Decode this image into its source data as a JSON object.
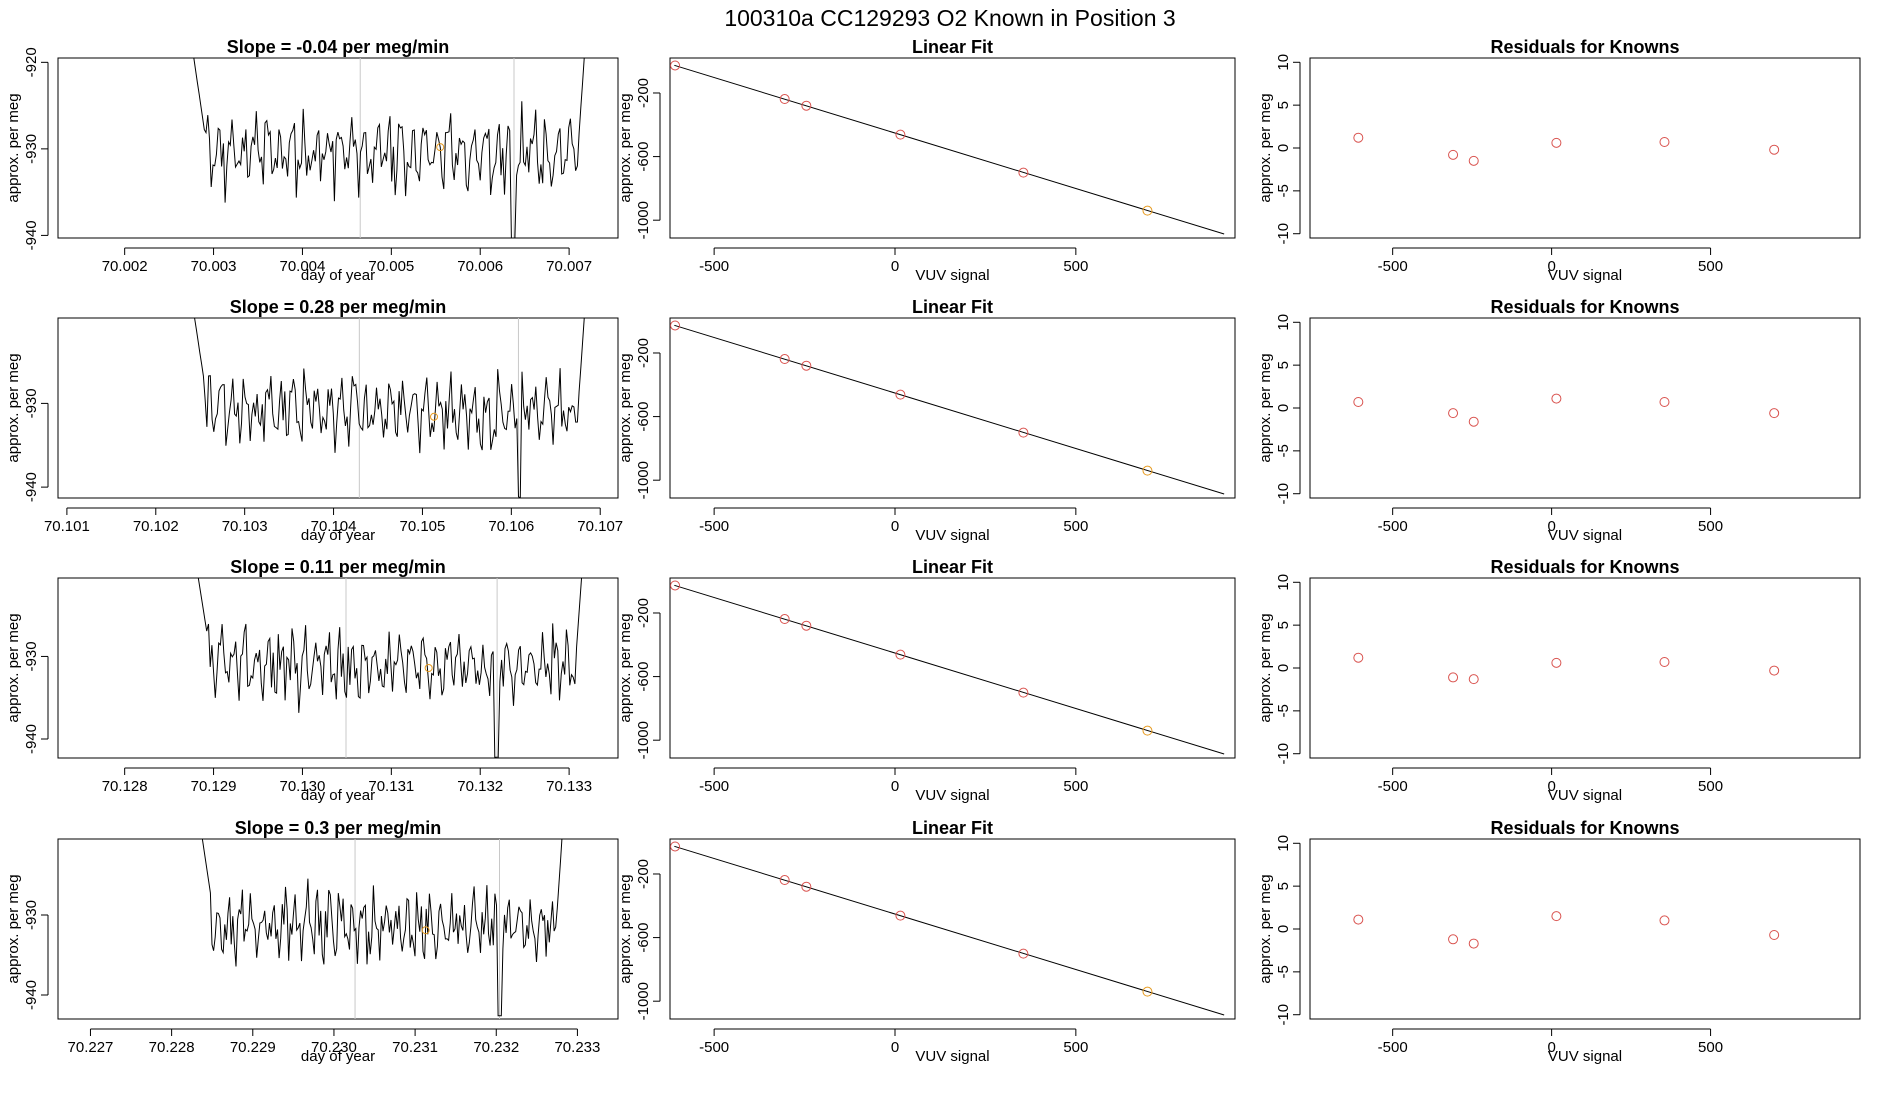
{
  "page_title": "100310a      CC129293   O2 Known in Position  3",
  "colors": {
    "point": "#d9534f",
    "highlight": "#e69a1f",
    "guide": "#c8c8c8",
    "ink": "#000000"
  },
  "rows": [
    {
      "time": {
        "title": "Slope =  -0.04  per meg/min",
        "xlabel": "day of year",
        "ylabel": "approx. per meg",
        "xlim": [
          70.00125,
          70.00755
        ],
        "ylim": [
          -940.3,
          -919.5
        ],
        "xticks": [
          "70.002",
          "70.003",
          "70.004",
          "70.005",
          "70.006",
          "70.007"
        ],
        "yticks": [
          "-920",
          "-930",
          "-940"
        ],
        "vlines": [
          70.00465,
          70.00638
        ],
        "highlight": {
          "x": 70.00555,
          "y": -929.8
        },
        "segment": [
          70.00272,
          70.00721
        ],
        "base": -930.4,
        "seed": 11,
        "dips": [
          {
            "x": 70.00637,
            "y": -940.3
          }
        ]
      },
      "fit": {
        "title": "Linear Fit",
        "xlabel": "VUV signal",
        "ylabel": "approx. per meg",
        "xlim": [
          -622,
          940
        ],
        "ylim": [
          -1112,
          20
        ],
        "xticks": [
          "-500",
          "0",
          "500"
        ],
        "yticks": [
          "-200",
          "-600",
          "-1000"
        ],
        "line": [
          [
            -610,
            -26
          ],
          [
            910,
            -1087
          ]
        ],
        "points": [
          [
            -608,
            -27
          ],
          [
            -305,
            -238
          ],
          [
            -245,
            -280
          ],
          [
            15,
            -462
          ],
          [
            355,
            -701
          ],
          [
            698,
            -940
          ]
        ],
        "highlight_index": 5
      },
      "resid": {
        "title": "Residuals for Knowns",
        "xlabel": "VUV signal",
        "ylabel": "approx. per meg",
        "xlim": [
          -760,
          970
        ],
        "ylim": [
          -10.5,
          10.5
        ],
        "xticks": [
          "-500",
          "0",
          "500"
        ],
        "yticks": [
          "10",
          "5",
          "0",
          "-5",
          "-10"
        ],
        "points": [
          [
            -608,
            1.2
          ],
          [
            -310,
            -0.8
          ],
          [
            -245,
            -1.5
          ],
          [
            15,
            0.6
          ],
          [
            355,
            0.7
          ],
          [
            700,
            -0.2
          ]
        ]
      }
    },
    {
      "time": {
        "title": "Slope =  0.28  per meg/min",
        "xlabel": "day of year",
        "ylabel": "approx. per meg",
        "xlim": [
          70.1009,
          70.1072
        ],
        "ylim": [
          -941.3,
          -919.8
        ],
        "xticks": [
          "70.101",
          "70.102",
          "70.103",
          "70.104",
          "70.105",
          "70.106",
          "70.107"
        ],
        "yticks": [
          "-930",
          "-940"
        ],
        "vlines": [
          70.10429,
          70.10608
        ],
        "highlight": {
          "x": 70.10513,
          "y": -931.6
        },
        "segment": [
          70.10238,
          70.10686
        ],
        "base": -930.8,
        "seed": 23,
        "dips": [
          {
            "x": 70.10609,
            "y": -941.2
          }
        ]
      },
      "fit": {
        "title": "Linear Fit",
        "xlabel": "VUV signal",
        "ylabel": "approx. per meg",
        "xlim": [
          -622,
          940
        ],
        "ylim": [
          -1112,
          20
        ],
        "xticks": [
          "-500",
          "0",
          "500"
        ],
        "yticks": [
          "-200",
          "-600",
          "-1000"
        ],
        "line": [
          [
            -610,
            -26
          ],
          [
            910,
            -1087
          ]
        ],
        "points": [
          [
            -608,
            -27
          ],
          [
            -305,
            -238
          ],
          [
            -245,
            -280
          ],
          [
            15,
            -462
          ],
          [
            355,
            -701
          ],
          [
            698,
            -940
          ]
        ],
        "highlight_index": 5
      },
      "resid": {
        "title": "Residuals for Knowns",
        "xlabel": "VUV signal",
        "ylabel": "approx. per meg",
        "xlim": [
          -760,
          970
        ],
        "ylim": [
          -10.5,
          10.5
        ],
        "xticks": [
          "-500",
          "0",
          "500"
        ],
        "yticks": [
          "10",
          "5",
          "0",
          "-5",
          "-10"
        ],
        "points": [
          [
            -608,
            0.7
          ],
          [
            -310,
            -0.6
          ],
          [
            -245,
            -1.6
          ],
          [
            15,
            1.1
          ],
          [
            355,
            0.7
          ],
          [
            700,
            -0.6
          ]
        ]
      }
    },
    {
      "time": {
        "title": "Slope =  0.11  per meg/min",
        "xlabel": "day of year",
        "ylabel": "approx. per meg",
        "xlim": [
          70.12725,
          70.13355
        ],
        "ylim": [
          -942.3,
          -920.5
        ],
        "xticks": [
          "70.128",
          "70.129",
          "70.130",
          "70.131",
          "70.132",
          "70.133"
        ],
        "yticks": [
          "-930",
          "-940"
        ],
        "vlines": [
          70.13049,
          70.13219
        ],
        "highlight": {
          "x": 70.13142,
          "y": -931.4
        },
        "segment": [
          70.12877,
          70.13318
        ],
        "base": -931.0,
        "seed": 37,
        "dips": [
          {
            "x": 70.13219,
            "y": -942.2
          }
        ]
      },
      "fit": {
        "title": "Linear Fit",
        "xlabel": "VUV signal",
        "ylabel": "approx. per meg",
        "xlim": [
          -622,
          940
        ],
        "ylim": [
          -1112,
          20
        ],
        "xticks": [
          "-500",
          "0",
          "500"
        ],
        "yticks": [
          "-200",
          "-600",
          "-1000"
        ],
        "line": [
          [
            -610,
            -26
          ],
          [
            910,
            -1087
          ]
        ],
        "points": [
          [
            -608,
            -27
          ],
          [
            -305,
            -238
          ],
          [
            -245,
            -280
          ],
          [
            15,
            -462
          ],
          [
            355,
            -701
          ],
          [
            698,
            -940
          ]
        ],
        "highlight_index": 5
      },
      "resid": {
        "title": "Residuals for Knowns",
        "xlabel": "VUV signal",
        "ylabel": "approx. per meg",
        "xlim": [
          -760,
          970
        ],
        "ylim": [
          -10.5,
          10.5
        ],
        "xticks": [
          "-500",
          "0",
          "500"
        ],
        "yticks": [
          "10",
          "5",
          "0",
          "-5",
          "-10"
        ],
        "points": [
          [
            -608,
            1.2
          ],
          [
            -310,
            -1.1
          ],
          [
            -245,
            -1.3
          ],
          [
            15,
            0.6
          ],
          [
            355,
            0.7
          ],
          [
            700,
            -0.3
          ]
        ]
      }
    },
    {
      "time": {
        "title": "Slope =  0.3  per meg/min",
        "xlabel": "day of year",
        "ylabel": "approx. per meg",
        "xlim": [
          70.2266,
          70.2335
        ],
        "ylim": [
          -943.0,
          -920.5
        ],
        "xticks": [
          "70.227",
          "70.228",
          "70.229",
          "70.230",
          "70.231",
          "70.232",
          "70.233"
        ],
        "yticks": [
          "-930",
          "-940"
        ],
        "vlines": [
          70.23026,
          70.23204
        ],
        "highlight": {
          "x": 70.23113,
          "y": -931.9
        },
        "segment": [
          70.22832,
          70.23285
        ],
        "base": -931.3,
        "seed": 53,
        "dips": [
          {
            "x": 70.23204,
            "y": -942.6
          }
        ]
      },
      "fit": {
        "title": "Linear Fit",
        "xlabel": "VUV signal",
        "ylabel": "approx. per meg",
        "xlim": [
          -622,
          940
        ],
        "ylim": [
          -1112,
          20
        ],
        "xticks": [
          "-500",
          "0",
          "500"
        ],
        "yticks": [
          "-200",
          "-600",
          "-1000"
        ],
        "line": [
          [
            -610,
            -26
          ],
          [
            910,
            -1087
          ]
        ],
        "points": [
          [
            -608,
            -27
          ],
          [
            -305,
            -238
          ],
          [
            -245,
            -280
          ],
          [
            15,
            -462
          ],
          [
            355,
            -701
          ],
          [
            698,
            -940
          ]
        ],
        "highlight_index": 5
      },
      "resid": {
        "title": "Residuals for Knowns",
        "xlabel": "VUV signal",
        "ylabel": "approx. per meg",
        "xlim": [
          -760,
          970
        ],
        "ylim": [
          -10.5,
          10.5
        ],
        "xticks": [
          "-500",
          "0",
          "500"
        ],
        "yticks": [
          "10",
          "5",
          "0",
          "-5",
          "-10"
        ],
        "points": [
          [
            -608,
            1.1
          ],
          [
            -310,
            -1.2
          ],
          [
            -245,
            -1.7
          ],
          [
            15,
            1.5
          ],
          [
            355,
            1.0
          ],
          [
            700,
            -0.7
          ]
        ]
      }
    }
  ],
  "chart_data": [
    {
      "type": "line",
      "title": "Slope =  -0.04  per meg/min",
      "xlabel": "day of year",
      "ylabel": "approx. per meg",
      "xlim": [
        70.00125,
        70.00755
      ],
      "ylim": [
        -940.3,
        -919.5
      ],
      "grid": false
    },
    {
      "type": "line",
      "title": "Linear Fit",
      "xlabel": "VUV signal",
      "ylabel": "approx. per meg",
      "x": [
        -608,
        -305,
        -245,
        15,
        355,
        698
      ],
      "y": [
        -27,
        -238,
        -280,
        -462,
        -701,
        -940
      ],
      "grid": false
    },
    {
      "type": "scatter",
      "title": "Residuals for Knowns",
      "xlabel": "VUV signal",
      "ylabel": "approx. per meg",
      "x": [
        -608,
        -310,
        -245,
        15,
        355,
        700
      ],
      "y": [
        1.2,
        -0.8,
        -1.5,
        0.6,
        0.7,
        -0.2
      ],
      "ylim": [
        -10,
        10
      ],
      "grid": false
    },
    {
      "type": "line",
      "title": "Slope =  0.28  per meg/min",
      "xlabel": "day of year",
      "ylabel": "approx. per meg",
      "xlim": [
        70.1009,
        70.1072
      ],
      "ylim": [
        -941.3,
        -919.8
      ],
      "grid": false
    },
    {
      "type": "line",
      "title": "Linear Fit",
      "xlabel": "VUV signal",
      "ylabel": "approx. per meg",
      "x": [
        -608,
        -305,
        -245,
        15,
        355,
        698
      ],
      "y": [
        -27,
        -238,
        -280,
        -462,
        -701,
        -940
      ],
      "grid": false
    },
    {
      "type": "scatter",
      "title": "Residuals for Knowns",
      "xlabel": "VUV signal",
      "ylabel": "approx. per meg",
      "x": [
        -608,
        -310,
        -245,
        15,
        355,
        700
      ],
      "y": [
        0.7,
        -0.6,
        -1.6,
        1.1,
        0.7,
        -0.6
      ],
      "ylim": [
        -10,
        10
      ],
      "grid": false
    },
    {
      "type": "line",
      "title": "Slope =  0.11  per meg/min",
      "xlabel": "day of year",
      "ylabel": "approx. per meg",
      "xlim": [
        70.12725,
        70.13355
      ],
      "ylim": [
        -942.3,
        -920.5
      ],
      "grid": false
    },
    {
      "type": "line",
      "title": "Linear Fit",
      "xlabel": "VUV signal",
      "ylabel": "approx. per meg",
      "x": [
        -608,
        -305,
        -245,
        15,
        355,
        698
      ],
      "y": [
        -27,
        -238,
        -280,
        -462,
        -701,
        -940
      ],
      "grid": false
    },
    {
      "type": "scatter",
      "title": "Residuals for Knowns",
      "xlabel": "VUV signal",
      "ylabel": "approx. per meg",
      "x": [
        -608,
        -310,
        -245,
        15,
        355,
        700
      ],
      "y": [
        1.2,
        -1.1,
        -1.3,
        0.6,
        0.7,
        -0.3
      ],
      "ylim": [
        -10,
        10
      ],
      "grid": false
    },
    {
      "type": "line",
      "title": "Slope =  0.3  per meg/min",
      "xlabel": "day of year",
      "ylabel": "approx. per meg",
      "xlim": [
        70.2266,
        70.2335
      ],
      "ylim": [
        -943.0,
        -920.5
      ],
      "grid": false
    },
    {
      "type": "line",
      "title": "Linear Fit",
      "xlabel": "VUV signal",
      "ylabel": "approx. per meg",
      "x": [
        -608,
        -305,
        -245,
        15,
        355,
        698
      ],
      "y": [
        -27,
        -238,
        -280,
        -462,
        -701,
        -940
      ],
      "grid": false
    },
    {
      "type": "scatter",
      "title": "Residuals for Knowns",
      "xlabel": "VUV signal",
      "ylabel": "approx. per meg",
      "x": [
        -608,
        -310,
        -245,
        15,
        355,
        700
      ],
      "y": [
        1.1,
        -1.2,
        -1.7,
        1.5,
        1.0,
        -0.7
      ],
      "ylim": [
        -10,
        10
      ],
      "grid": false
    }
  ]
}
